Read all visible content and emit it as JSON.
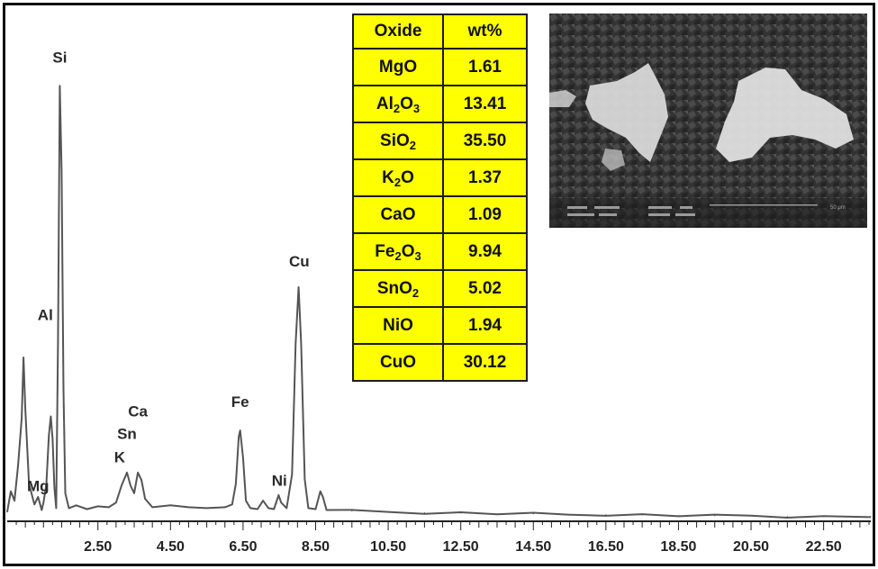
{
  "chart_data": {
    "type": "line",
    "title": "",
    "xlabel": "",
    "ylabel": "",
    "xlim": [
      0.0,
      23.8
    ],
    "x_ticks": [
      "2.50",
      "4.50",
      "6.50",
      "8.50",
      "10.50",
      "12.50",
      "14.50",
      "16.50",
      "18.50",
      "20.50",
      "22.50"
    ],
    "x_tick_values": [
      2.5,
      4.5,
      6.5,
      8.5,
      10.5,
      12.5,
      14.5,
      16.5,
      18.5,
      20.5,
      22.5
    ],
    "series": [
      {
        "values": [
          [
            0.0,
            10
          ],
          [
            0.1,
            32
          ],
          [
            0.2,
            22
          ],
          [
            0.3,
            60
          ],
          [
            0.4,
            110
          ],
          [
            0.45,
            175
          ],
          [
            0.5,
            120
          ],
          [
            0.6,
            40
          ],
          [
            0.75,
            18
          ],
          [
            0.85,
            26
          ],
          [
            0.95,
            12
          ],
          [
            1.0,
            20
          ],
          [
            1.08,
            40
          ],
          [
            1.15,
            92
          ],
          [
            1.2,
            112
          ],
          [
            1.25,
            88
          ],
          [
            1.3,
            36
          ],
          [
            1.35,
            14
          ],
          [
            1.4,
            190
          ],
          [
            1.45,
            465
          ],
          [
            1.5,
            375
          ],
          [
            1.55,
            140
          ],
          [
            1.6,
            30
          ],
          [
            1.7,
            14
          ],
          [
            1.9,
            17
          ],
          [
            2.2,
            13
          ],
          [
            2.5,
            16
          ],
          [
            2.8,
            15
          ],
          [
            3.0,
            20
          ],
          [
            3.15,
            38
          ],
          [
            3.3,
            52
          ],
          [
            3.4,
            38
          ],
          [
            3.5,
            30
          ],
          [
            3.6,
            52
          ],
          [
            3.7,
            44
          ],
          [
            3.8,
            24
          ],
          [
            4.0,
            15
          ],
          [
            4.5,
            17
          ],
          [
            5.0,
            15
          ],
          [
            5.5,
            14
          ],
          [
            6.0,
            15
          ],
          [
            6.2,
            18
          ],
          [
            6.3,
            40
          ],
          [
            6.38,
            90
          ],
          [
            6.42,
            97
          ],
          [
            6.5,
            68
          ],
          [
            6.58,
            22
          ],
          [
            6.7,
            14
          ],
          [
            6.9,
            13
          ],
          [
            7.05,
            22
          ],
          [
            7.2,
            14
          ],
          [
            7.35,
            13
          ],
          [
            7.48,
            28
          ],
          [
            7.55,
            20
          ],
          [
            7.7,
            14
          ],
          [
            7.85,
            50
          ],
          [
            7.95,
            190
          ],
          [
            8.03,
            250
          ],
          [
            8.1,
            190
          ],
          [
            8.2,
            45
          ],
          [
            8.3,
            14
          ],
          [
            8.5,
            13
          ],
          [
            8.63,
            32
          ],
          [
            8.7,
            26
          ],
          [
            8.8,
            12
          ],
          [
            9.5,
            11
          ],
          [
            10.5,
            10
          ],
          [
            11.5,
            9
          ],
          [
            12.5,
            9
          ],
          [
            13.5,
            8
          ],
          [
            14.5,
            8
          ],
          [
            15.5,
            7
          ],
          [
            16.5,
            7
          ],
          [
            17.5,
            7
          ],
          [
            18.5,
            6
          ],
          [
            19.5,
            6
          ],
          [
            20.5,
            6
          ],
          [
            21.5,
            5
          ],
          [
            22.5,
            5
          ],
          [
            23.8,
            5
          ]
        ]
      }
    ],
    "peak_labels": [
      {
        "text": "Si",
        "x": 1.45,
        "y": 490
      },
      {
        "text": "Al",
        "x": 1.05,
        "y": 215
      },
      {
        "text": "Mg",
        "x": 0.85,
        "y": 32
      },
      {
        "text": "Ca",
        "x": 3.6,
        "y": 112
      },
      {
        "text": "Sn",
        "x": 3.3,
        "y": 88
      },
      {
        "text": "K",
        "x": 3.1,
        "y": 63
      },
      {
        "text": "Fe",
        "x": 6.42,
        "y": 122
      },
      {
        "text": "Ni",
        "x": 7.5,
        "y": 38
      },
      {
        "text": "Cu",
        "x": 8.05,
        "y": 272
      }
    ]
  },
  "table": {
    "header": {
      "oxide": "Oxide",
      "wt": "wt%"
    },
    "rows": [
      {
        "base": "MgO",
        "sub": "",
        "tail": "",
        "value": "1.61"
      },
      {
        "base": "Al",
        "sub": "2",
        "tail": "O3",
        "value": "13.41"
      },
      {
        "base": "SiO",
        "sub": "2",
        "tail": "",
        "value": "35.50"
      },
      {
        "base": "K",
        "sub": "2",
        "tail": "O",
        "value": "1.37"
      },
      {
        "base": "CaO",
        "sub": "",
        "tail": "",
        "value": "1.09"
      },
      {
        "base": "Fe",
        "sub": "2",
        "tail": "O3",
        "value": "9.94"
      },
      {
        "base": "SnO",
        "sub": "2",
        "tail": "",
        "value": "5.02"
      },
      {
        "base": "NiO",
        "sub": "",
        "tail": "",
        "value": "1.94"
      },
      {
        "base": "CuO",
        "sub": "",
        "tail": "",
        "value": "30.12"
      }
    ]
  },
  "colors": {
    "table_fill": "#ffff00",
    "trace": "#555555",
    "axis": "#222222",
    "micrograph": "#2e2e2e"
  },
  "micrograph": {
    "scale_bar": "50 μm"
  }
}
